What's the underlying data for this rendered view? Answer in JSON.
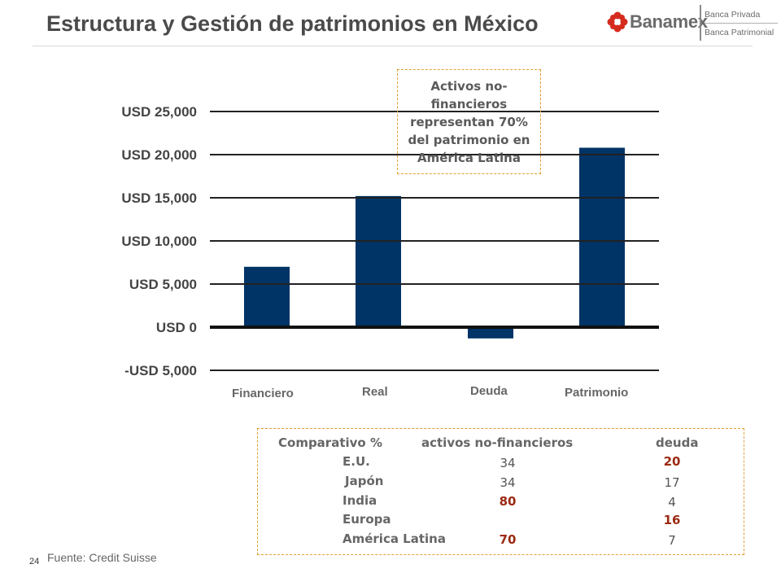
{
  "header": {
    "title": "Estructura y Gestión de patrimonios en México"
  },
  "logo": {
    "name": "Banamex",
    "line1": "Banca Privada",
    "line2": "Banca Patrimonial",
    "brand_color": "#d52b1e"
  },
  "callout": {
    "text": "Activos no-financieros representan 70% del patrimonio en América Latina"
  },
  "chart_data": {
    "type": "bar",
    "categories": [
      "Financiero",
      "Real",
      "Deuda",
      "Patrimonio"
    ],
    "values": [
      7000,
      15200,
      -1300,
      20800
    ],
    "ylim": [
      -5000,
      25000
    ],
    "yticks": [
      25000,
      20000,
      15000,
      10000,
      5000,
      0,
      -5000
    ],
    "ytick_labels": [
      "USD 25,000",
      "USD 20,000",
      "USD 15,000",
      "USD 10,000",
      "USD 5,000",
      "USD 0",
      "-USD 5,000"
    ],
    "grid": true,
    "bar_color": "#003366"
  },
  "comparison_table": {
    "headers": [
      "Comparativo %",
      "activos no-financieros",
      "deuda"
    ],
    "rows": [
      {
        "country": "E.U.",
        "activos": "34",
        "deuda": "20",
        "activos_hl": false,
        "deuda_hl": true
      },
      {
        "country": "Japón",
        "activos": "34",
        "deuda": "17",
        "activos_hl": false,
        "deuda_hl": false
      },
      {
        "country": "India",
        "activos": "80",
        "deuda": "4",
        "activos_hl": true,
        "deuda_hl": false
      },
      {
        "country": "Europa",
        "activos": "",
        "deuda": "16",
        "activos_hl": false,
        "deuda_hl": true
      },
      {
        "country": "América Latina",
        "activos": "70",
        "deuda": "7",
        "activos_hl": true,
        "deuda_hl": false
      }
    ],
    "highlight_color": "#9b2a12"
  },
  "footer": {
    "source": "Fuente: Credit Suisse",
    "page_number": "24"
  }
}
